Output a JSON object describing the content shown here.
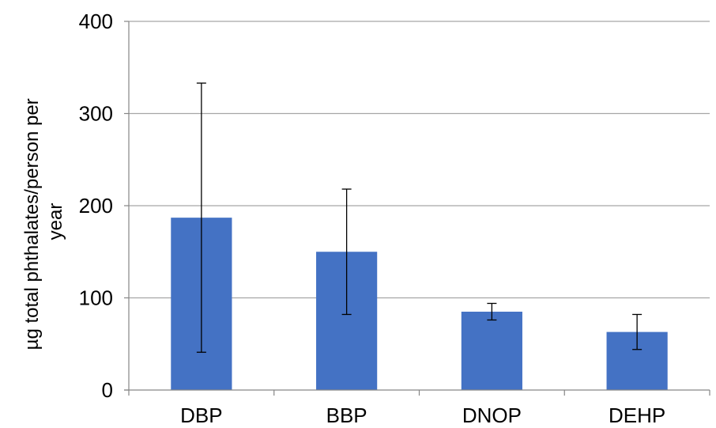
{
  "chart_data": {
    "type": "bar",
    "title": "",
    "xlabel": "",
    "ylabel_lines": [
      "µg total phthalates/person per",
      "year"
    ],
    "categories": [
      "DBP",
      "BBP",
      "DNOP",
      "DEHP"
    ],
    "series": [
      {
        "values": [
          187,
          150,
          85,
          63
        ],
        "error_low": [
          41,
          82,
          76,
          44
        ],
        "error_high": [
          333,
          218,
          94,
          82
        ]
      }
    ],
    "ylim": [
      0,
      400
    ],
    "yticks": [
      "0",
      "100",
      "200",
      "300",
      "400"
    ],
    "grid": true,
    "legend": "none",
    "colors": {
      "bar": "#4472c4",
      "grid": "#a6a6a6",
      "axis": "#868686"
    }
  }
}
